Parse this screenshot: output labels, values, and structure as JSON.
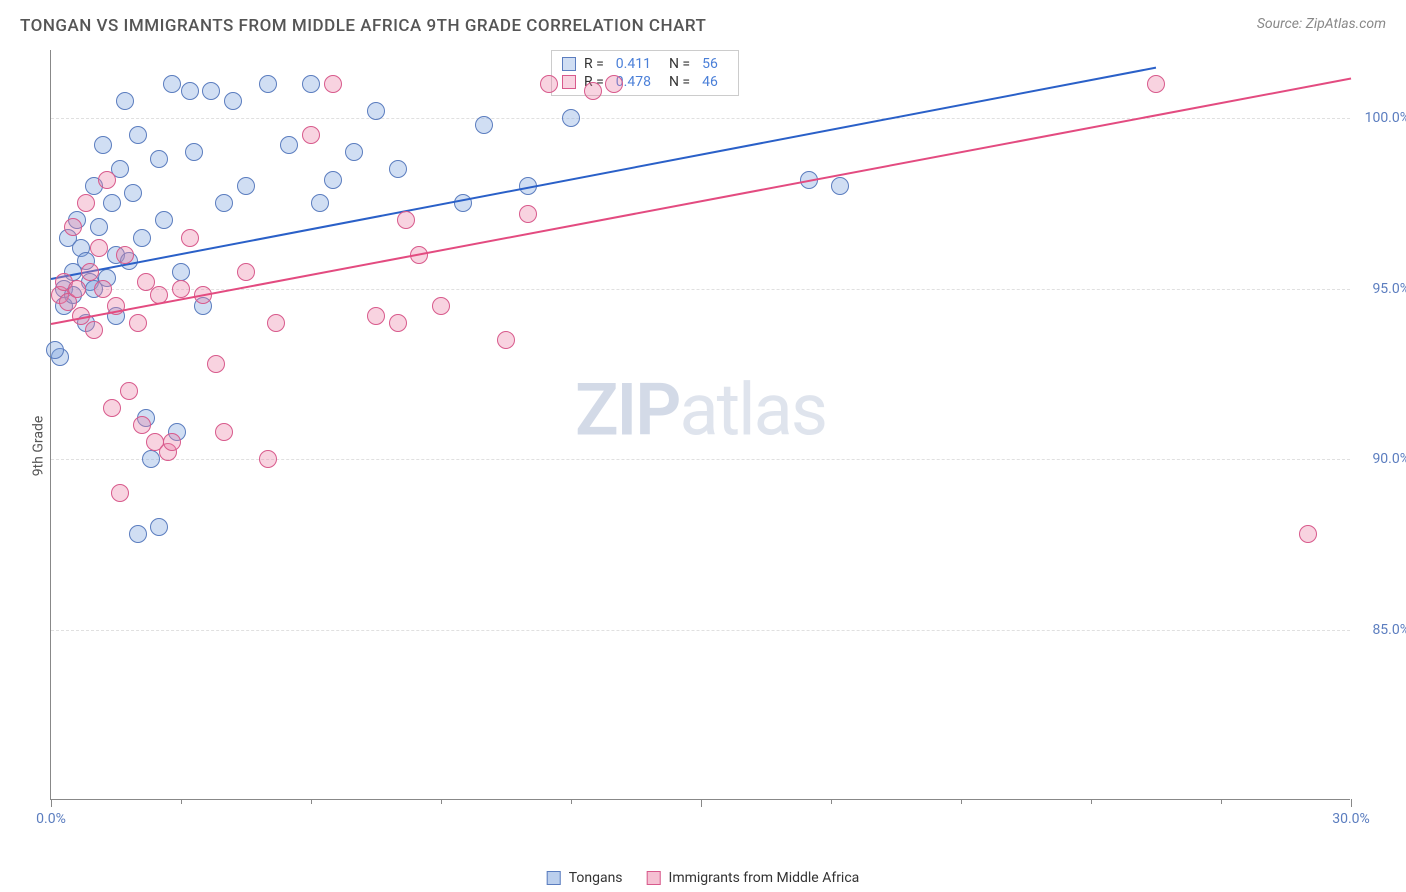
{
  "title": "TONGAN VS IMMIGRANTS FROM MIDDLE AFRICA 9TH GRADE CORRELATION CHART",
  "source": "Source: ZipAtlas.com",
  "y_axis_label": "9th Grade",
  "watermark_zip": "ZIP",
  "watermark_atlas": "atlas",
  "chart": {
    "type": "scatter",
    "xlim": [
      0,
      30
    ],
    "ylim": [
      80,
      102
    ],
    "x_ticks_major": [
      0,
      15,
      30
    ],
    "x_ticks_minor": [
      3,
      6,
      9,
      12,
      18,
      21,
      24,
      27
    ],
    "y_ticks": [
      85,
      90,
      95,
      100
    ],
    "x_tick_labels": {
      "0": "0.0%",
      "30": "30.0%"
    },
    "y_tick_labels": {
      "85": "85.0%",
      "90": "90.0%",
      "95": "95.0%",
      "100": "100.0%"
    },
    "grid_color": "#e0e0e0",
    "axis_color": "#888888",
    "tick_label_color": "#5b7dbf",
    "series": [
      {
        "name": "Tongans",
        "fill": "rgba(120,160,220,0.35)",
        "stroke": "#5b7dbf",
        "marker_radius": 9,
        "trend_color": "#2a60c8",
        "trend": {
          "x1": 0,
          "y1": 95.3,
          "x2": 25.5,
          "y2": 101.5
        },
        "r_value": "0.411",
        "n_value": "56",
        "points": [
          [
            0.2,
            93.0
          ],
          [
            0.3,
            95.0
          ],
          [
            0.3,
            94.5
          ],
          [
            0.4,
            96.5
          ],
          [
            0.5,
            95.5
          ],
          [
            0.5,
            94.8
          ],
          [
            0.6,
            97.0
          ],
          [
            0.7,
            96.2
          ],
          [
            0.8,
            95.8
          ],
          [
            0.8,
            94.0
          ],
          [
            0.9,
            95.2
          ],
          [
            1.0,
            98.0
          ],
          [
            1.0,
            95.0
          ],
          [
            1.1,
            96.8
          ],
          [
            1.2,
            99.2
          ],
          [
            1.3,
            95.3
          ],
          [
            1.4,
            97.5
          ],
          [
            1.5,
            96.0
          ],
          [
            1.5,
            94.2
          ],
          [
            1.6,
            98.5
          ],
          [
            1.7,
            100.5
          ],
          [
            1.8,
            95.8
          ],
          [
            1.9,
            97.8
          ],
          [
            2.0,
            99.5
          ],
          [
            2.1,
            96.5
          ],
          [
            2.2,
            91.2
          ],
          [
            2.3,
            90.0
          ],
          [
            2.5,
            98.8
          ],
          [
            2.5,
            88.0
          ],
          [
            2.6,
            97.0
          ],
          [
            2.8,
            101.0
          ],
          [
            2.9,
            90.8
          ],
          [
            3.0,
            95.5
          ],
          [
            3.2,
            100.8
          ],
          [
            3.3,
            99.0
          ],
          [
            3.5,
            94.5
          ],
          [
            3.7,
            100.8
          ],
          [
            4.0,
            97.5
          ],
          [
            4.2,
            100.5
          ],
          [
            4.5,
            98.0
          ],
          [
            5.0,
            101.0
          ],
          [
            5.5,
            99.2
          ],
          [
            6.0,
            101.0
          ],
          [
            6.2,
            97.5
          ],
          [
            6.5,
            98.2
          ],
          [
            7.0,
            99.0
          ],
          [
            7.5,
            100.2
          ],
          [
            8.0,
            98.5
          ],
          [
            9.5,
            97.5
          ],
          [
            10.0,
            99.8
          ],
          [
            11.0,
            98.0
          ],
          [
            12.0,
            100.0
          ],
          [
            17.5,
            98.2
          ],
          [
            18.2,
            98.0
          ],
          [
            2.0,
            87.8
          ],
          [
            0.1,
            93.2
          ]
        ]
      },
      {
        "name": "Immigrants from Middle Africa",
        "fill": "rgba(235,130,165,0.35)",
        "stroke": "#d85a8c",
        "marker_radius": 9,
        "trend_color": "#e34b80",
        "trend": {
          "x1": 0,
          "y1": 94.0,
          "x2": 30,
          "y2": 101.2
        },
        "r_value": "0.478",
        "n_value": "46",
        "points": [
          [
            0.2,
            94.8
          ],
          [
            0.3,
            95.2
          ],
          [
            0.4,
            94.6
          ],
          [
            0.5,
            96.8
          ],
          [
            0.6,
            95.0
          ],
          [
            0.7,
            94.2
          ],
          [
            0.8,
            97.5
          ],
          [
            0.9,
            95.5
          ],
          [
            1.0,
            93.8
          ],
          [
            1.1,
            96.2
          ],
          [
            1.2,
            95.0
          ],
          [
            1.3,
            98.2
          ],
          [
            1.4,
            91.5
          ],
          [
            1.5,
            94.5
          ],
          [
            1.6,
            89.0
          ],
          [
            1.7,
            96.0
          ],
          [
            1.8,
            92.0
          ],
          [
            2.0,
            94.0
          ],
          [
            2.1,
            91.0
          ],
          [
            2.2,
            95.2
          ],
          [
            2.4,
            90.5
          ],
          [
            2.5,
            94.8
          ],
          [
            2.7,
            90.2
          ],
          [
            2.8,
            90.5
          ],
          [
            3.0,
            95.0
          ],
          [
            3.2,
            96.5
          ],
          [
            3.5,
            94.8
          ],
          [
            3.8,
            92.8
          ],
          [
            4.0,
            90.8
          ],
          [
            4.5,
            95.5
          ],
          [
            5.0,
            90.0
          ],
          [
            5.2,
            94.0
          ],
          [
            6.0,
            99.5
          ],
          [
            6.5,
            101.0
          ],
          [
            7.5,
            94.2
          ],
          [
            8.0,
            94.0
          ],
          [
            8.2,
            97.0
          ],
          [
            8.5,
            96.0
          ],
          [
            9.0,
            94.5
          ],
          [
            10.5,
            93.5
          ],
          [
            11.0,
            97.2
          ],
          [
            11.5,
            101.0
          ],
          [
            12.5,
            100.8
          ],
          [
            13.0,
            101.0
          ],
          [
            25.5,
            101.0
          ],
          [
            29.0,
            87.8
          ]
        ]
      }
    ]
  },
  "legend_top_label_r": "R =",
  "legend_top_label_n": "N =",
  "legend_bottom": [
    {
      "label": "Tongans",
      "fill": "rgba(120,160,220,0.5)",
      "stroke": "#5b7dbf"
    },
    {
      "label": "Immigrants from Middle Africa",
      "fill": "rgba(235,130,165,0.5)",
      "stroke": "#d85a8c"
    }
  ]
}
